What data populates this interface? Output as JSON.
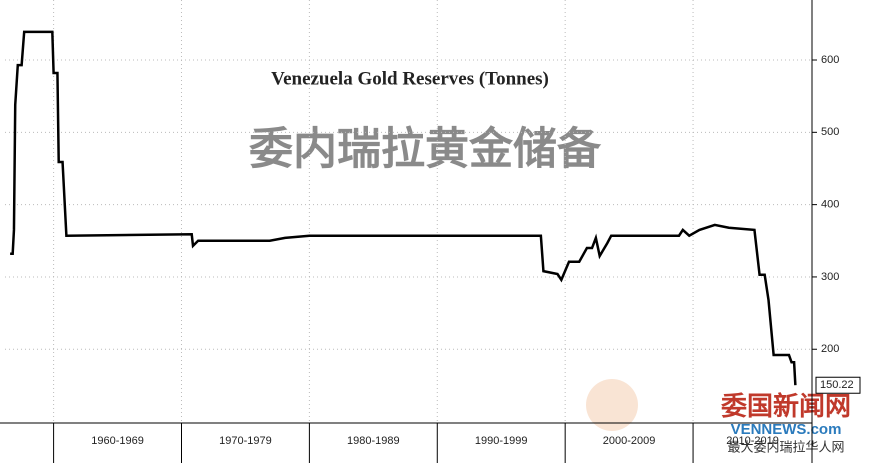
{
  "chart_data": {
    "type": "line",
    "title": "Venezuela Gold Reserves (Tonnes)",
    "watermark": "委内瑞拉黄金储备",
    "logo": {
      "name": "委国新闻网",
      "site": "VENNEWS.com",
      "slogan": "最大委内瑞拉华人网"
    },
    "x": [
      1956.6,
      1956.8,
      1956.9,
      1957.0,
      1957.2,
      1957.5,
      1957.7,
      1959.9,
      1960.0,
      1960.3,
      1960.4,
      1960.7,
      1961.0,
      1970.8,
      1970.9,
      1971.3,
      1976.9,
      1978.1,
      1980.0,
      1998.1,
      1998.3,
      1999.4,
      1999.7,
      2000.3,
      2001.1,
      2001.7,
      2002.1,
      2002.4,
      2002.7,
      2003.3,
      2003.6,
      2008.9,
      2009.2,
      2009.7,
      2010.5,
      2011.7,
      2012.8,
      2014.8,
      2015.2,
      2015.6,
      2015.9,
      2016.3,
      2017.5,
      2017.7,
      2017.9,
      2018.0
    ],
    "series": [
      {
        "name": "Gold Reserves",
        "color": "#000000",
        "values": [
          332,
          332,
          365,
          538,
          593,
          593,
          639,
          639,
          582,
          582,
          459,
          459,
          357,
          359,
          343,
          350,
          350,
          354,
          357,
          357,
          308,
          304,
          296,
          321,
          321,
          340,
          340,
          354,
          329,
          347,
          357,
          357,
          365,
          357,
          365,
          372,
          368,
          365,
          303,
          303,
          268,
          192,
          192,
          182,
          182,
          150.22
        ]
      }
    ],
    "end_label": "150.22",
    "xlim": [
      1956.2,
      2019.3
    ],
    "xticks": [
      {
        "value": 1965,
        "label": "1960-1969"
      },
      {
        "value": 1975,
        "label": "1970-1979"
      },
      {
        "value": 1985,
        "label": "1980-1989"
      },
      {
        "value": 1995,
        "label": "1990-1999"
      },
      {
        "value": 2005,
        "label": "2000-2009"
      },
      {
        "value": 2014.65,
        "label": "2010-2019"
      }
    ],
    "x_separators": [
      1960,
      1970,
      1980,
      1990,
      2000,
      2010
    ],
    "ylim": [
      98,
      683
    ],
    "yticks": [
      200,
      300,
      400,
      500,
      600
    ],
    "grid": true
  }
}
